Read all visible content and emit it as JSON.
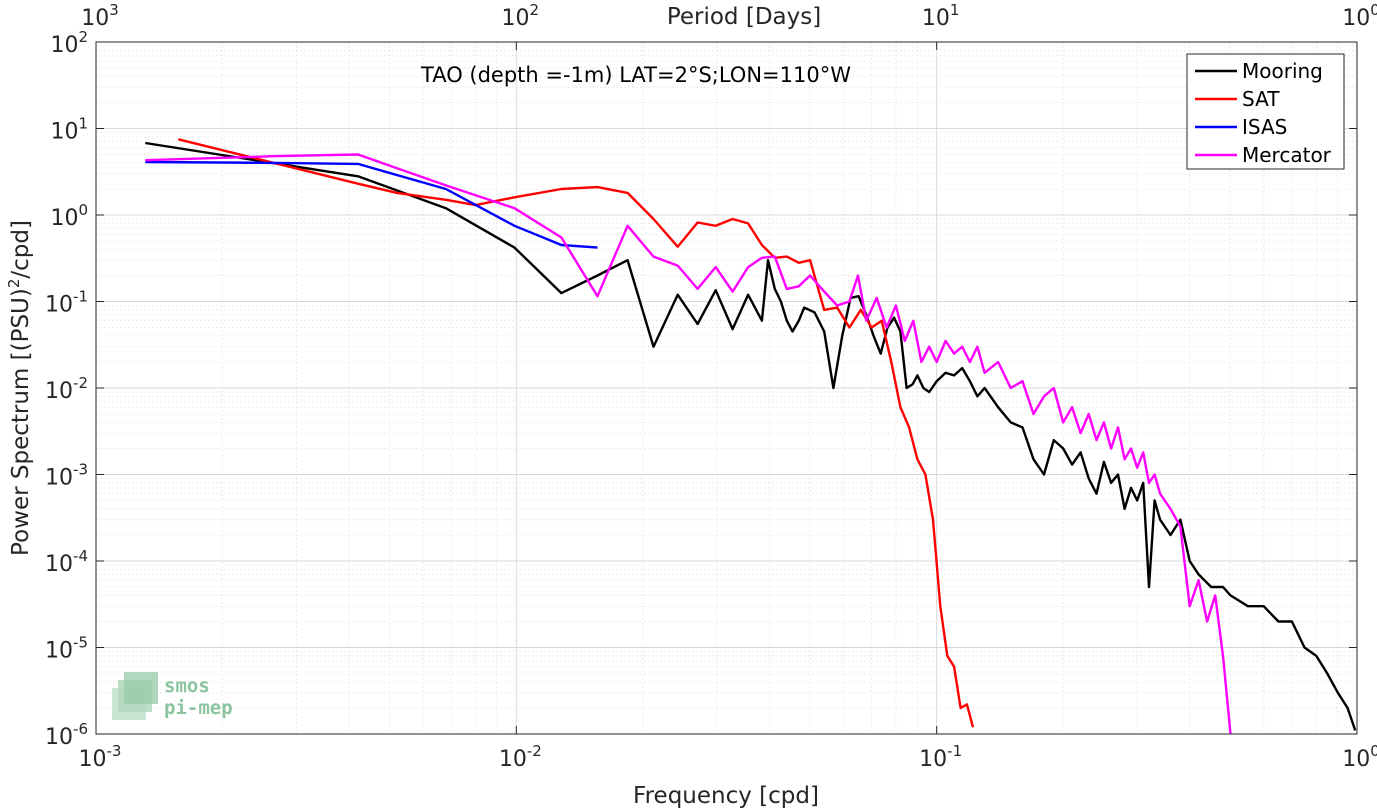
{
  "chart_data": {
    "type": "line",
    "title": "TAO (depth =-1m) LAT=2°S;LON=110°W",
    "xlabel": "Frequency [cpd]",
    "ylabel": "Power Spectrum [(PSU)²/cpd]",
    "top_xlabel": "Period [Days]",
    "xscale": "log",
    "yscale": "log",
    "xlim": [
      0.001,
      1
    ],
    "ylim": [
      1e-06,
      100
    ],
    "grid": true,
    "legend_placement": "top-right",
    "x_tick_labels": [
      {
        "base": "10",
        "exp": "-3"
      },
      {
        "base": "10",
        "exp": "-2"
      },
      {
        "base": "10",
        "exp": "-1"
      },
      {
        "base": "10",
        "exp": "0"
      }
    ],
    "y_tick_labels": [
      {
        "base": "10",
        "exp": "-6"
      },
      {
        "base": "10",
        "exp": "-5"
      },
      {
        "base": "10",
        "exp": "-4"
      },
      {
        "base": "10",
        "exp": "-3"
      },
      {
        "base": "10",
        "exp": "-2"
      },
      {
        "base": "10",
        "exp": "-1"
      },
      {
        "base": "10",
        "exp": "0"
      },
      {
        "base": "10",
        "exp": "1"
      },
      {
        "base": "10",
        "exp": "2"
      }
    ],
    "top_tick_labels": [
      {
        "base": "10",
        "exp": "3"
      },
      {
        "base": "10",
        "exp": "2"
      },
      {
        "base": "10",
        "exp": "1"
      },
      {
        "base": "10",
        "exp": "0"
      }
    ],
    "series": [
      {
        "name": "Mooring",
        "color": "#000000",
        "points": [
          [
            0.00131,
            6.8
          ],
          [
            0.0042,
            2.8
          ],
          [
            0.0068,
            1.2
          ],
          [
            0.0099,
            0.42
          ],
          [
            0.0128,
            0.125
          ],
          [
            0.0156,
            0.2
          ],
          [
            0.0184,
            0.3
          ],
          [
            0.0212,
            0.03
          ],
          [
            0.0242,
            0.12
          ],
          [
            0.027,
            0.055
          ],
          [
            0.0298,
            0.135
          ],
          [
            0.0327,
            0.048
          ],
          [
            0.0356,
            0.12
          ],
          [
            0.0384,
            0.06
          ],
          [
            0.0397,
            0.3
          ],
          [
            0.0412,
            0.14
          ],
          [
            0.0426,
            0.1
          ],
          [
            0.044,
            0.06
          ],
          [
            0.0454,
            0.045
          ],
          [
            0.047,
            0.06
          ],
          [
            0.0484,
            0.085
          ],
          [
            0.0512,
            0.075
          ],
          [
            0.054,
            0.045
          ],
          [
            0.0568,
            0.01
          ],
          [
            0.0596,
            0.04
          ],
          [
            0.0624,
            0.11
          ],
          [
            0.0652,
            0.115
          ],
          [
            0.068,
            0.07
          ],
          [
            0.0708,
            0.04
          ],
          [
            0.0736,
            0.025
          ],
          [
            0.0764,
            0.05
          ],
          [
            0.0792,
            0.065
          ],
          [
            0.082,
            0.045
          ],
          [
            0.0848,
            0.01
          ],
          [
            0.0876,
            0.011
          ],
          [
            0.09,
            0.014
          ],
          [
            0.093,
            0.01
          ],
          [
            0.096,
            0.009
          ],
          [
            0.1,
            0.012
          ],
          [
            0.105,
            0.015
          ],
          [
            0.11,
            0.014
          ],
          [
            0.115,
            0.017
          ],
          [
            0.12,
            0.012
          ],
          [
            0.125,
            0.008
          ],
          [
            0.13,
            0.01
          ],
          [
            0.14,
            0.006
          ],
          [
            0.15,
            0.004
          ],
          [
            0.16,
            0.0035
          ],
          [
            0.17,
            0.0015
          ],
          [
            0.18,
            0.001
          ],
          [
            0.19,
            0.0025
          ],
          [
            0.2,
            0.002
          ],
          [
            0.21,
            0.0013
          ],
          [
            0.22,
            0.0018
          ],
          [
            0.23,
            0.0009
          ],
          [
            0.24,
            0.0006
          ],
          [
            0.25,
            0.0014
          ],
          [
            0.26,
            0.0008
          ],
          [
            0.27,
            0.001
          ],
          [
            0.28,
            0.0004
          ],
          [
            0.29,
            0.0007
          ],
          [
            0.3,
            0.0005
          ],
          [
            0.31,
            0.0008
          ],
          [
            0.32,
            5e-05
          ],
          [
            0.33,
            0.0005
          ],
          [
            0.34,
            0.0003
          ],
          [
            0.36,
            0.0002
          ],
          [
            0.38,
            0.0003
          ],
          [
            0.4,
            0.0001
          ],
          [
            0.42,
            7e-05
          ],
          [
            0.45,
            5e-05
          ],
          [
            0.48,
            5e-05
          ],
          [
            0.5,
            4e-05
          ],
          [
            0.55,
            3e-05
          ],
          [
            0.6,
            3e-05
          ],
          [
            0.65,
            2e-05
          ],
          [
            0.7,
            2e-05
          ],
          [
            0.75,
            1e-05
          ],
          [
            0.8,
            8e-06
          ],
          [
            0.85,
            5e-06
          ],
          [
            0.9,
            3e-06
          ],
          [
            0.95,
            2e-06
          ],
          [
            0.99,
            1.1e-06
          ]
        ]
      },
      {
        "name": "SAT",
        "color": "#ff0000",
        "points": [
          [
            0.00157,
            7.5
          ],
          [
            0.0042,
            2.3
          ],
          [
            0.0052,
            1.8
          ],
          [
            0.0068,
            1.5
          ],
          [
            0.008,
            1.3
          ],
          [
            0.0099,
            1.6
          ],
          [
            0.0128,
            2.0
          ],
          [
            0.0156,
            2.1
          ],
          [
            0.0184,
            1.8
          ],
          [
            0.0212,
            0.9
          ],
          [
            0.0242,
            0.43
          ],
          [
            0.027,
            0.82
          ],
          [
            0.0298,
            0.75
          ],
          [
            0.0327,
            0.9
          ],
          [
            0.0356,
            0.8
          ],
          [
            0.0384,
            0.45
          ],
          [
            0.0412,
            0.32
          ],
          [
            0.044,
            0.33
          ],
          [
            0.047,
            0.28
          ],
          [
            0.05,
            0.3
          ],
          [
            0.054,
            0.08
          ],
          [
            0.058,
            0.085
          ],
          [
            0.062,
            0.05
          ],
          [
            0.066,
            0.08
          ],
          [
            0.07,
            0.05
          ],
          [
            0.074,
            0.06
          ],
          [
            0.078,
            0.02
          ],
          [
            0.082,
            0.006
          ],
          [
            0.086,
            0.0035
          ],
          [
            0.09,
            0.0015
          ],
          [
            0.094,
            0.001
          ],
          [
            0.098,
            0.0003
          ],
          [
            0.102,
            3e-05
          ],
          [
            0.106,
            8e-06
          ],
          [
            0.11,
            6e-06
          ],
          [
            0.114,
            2e-06
          ],
          [
            0.118,
            2.2e-06
          ],
          [
            0.122,
            1.2e-06
          ]
        ]
      },
      {
        "name": "ISAS",
        "color": "#0000ff",
        "points": [
          [
            0.00131,
            4.1
          ],
          [
            0.0027,
            4.0
          ],
          [
            0.0042,
            3.9
          ],
          [
            0.0068,
            2.0
          ],
          [
            0.0099,
            0.75
          ],
          [
            0.0128,
            0.45
          ],
          [
            0.0156,
            0.42
          ]
        ]
      },
      {
        "name": "Mercator",
        "color": "#ff00ff",
        "points": [
          [
            0.00131,
            4.3
          ],
          [
            0.0027,
            4.8
          ],
          [
            0.0042,
            5.0
          ],
          [
            0.0068,
            2.2
          ],
          [
            0.0099,
            1.2
          ],
          [
            0.0128,
            0.55
          ],
          [
            0.0156,
            0.115
          ],
          [
            0.0184,
            0.75
          ],
          [
            0.0212,
            0.33
          ],
          [
            0.0242,
            0.26
          ],
          [
            0.027,
            0.14
          ],
          [
            0.0298,
            0.25
          ],
          [
            0.0327,
            0.13
          ],
          [
            0.0356,
            0.25
          ],
          [
            0.0384,
            0.32
          ],
          [
            0.0412,
            0.33
          ],
          [
            0.044,
            0.14
          ],
          [
            0.047,
            0.15
          ],
          [
            0.05,
            0.2
          ],
          [
            0.054,
            0.13
          ],
          [
            0.058,
            0.09
          ],
          [
            0.062,
            0.1
          ],
          [
            0.065,
            0.2
          ],
          [
            0.068,
            0.06
          ],
          [
            0.072,
            0.11
          ],
          [
            0.076,
            0.05
          ],
          [
            0.08,
            0.09
          ],
          [
            0.084,
            0.035
          ],
          [
            0.088,
            0.06
          ],
          [
            0.092,
            0.02
          ],
          [
            0.096,
            0.03
          ],
          [
            0.1,
            0.02
          ],
          [
            0.105,
            0.035
          ],
          [
            0.11,
            0.025
          ],
          [
            0.115,
            0.03
          ],
          [
            0.12,
            0.02
          ],
          [
            0.125,
            0.03
          ],
          [
            0.13,
            0.015
          ],
          [
            0.14,
            0.02
          ],
          [
            0.15,
            0.01
          ],
          [
            0.16,
            0.012
          ],
          [
            0.17,
            0.005
          ],
          [
            0.18,
            0.008
          ],
          [
            0.19,
            0.01
          ],
          [
            0.2,
            0.004
          ],
          [
            0.21,
            0.006
          ],
          [
            0.22,
            0.003
          ],
          [
            0.23,
            0.005
          ],
          [
            0.24,
            0.0025
          ],
          [
            0.25,
            0.004
          ],
          [
            0.26,
            0.002
          ],
          [
            0.27,
            0.0035
          ],
          [
            0.28,
            0.0015
          ],
          [
            0.29,
            0.002
          ],
          [
            0.3,
            0.0012
          ],
          [
            0.31,
            0.0018
          ],
          [
            0.32,
            0.0008
          ],
          [
            0.33,
            0.001
          ],
          [
            0.34,
            0.0006
          ],
          [
            0.36,
            0.0004
          ],
          [
            0.38,
            0.00025
          ],
          [
            0.4,
            3e-05
          ],
          [
            0.42,
            6e-05
          ],
          [
            0.44,
            2e-05
          ],
          [
            0.46,
            4e-05
          ],
          [
            0.48,
            8e-06
          ],
          [
            0.5,
            1e-06
          ]
        ]
      }
    ]
  },
  "logo": {
    "line1": "smos",
    "line2": "pi-mep"
  }
}
